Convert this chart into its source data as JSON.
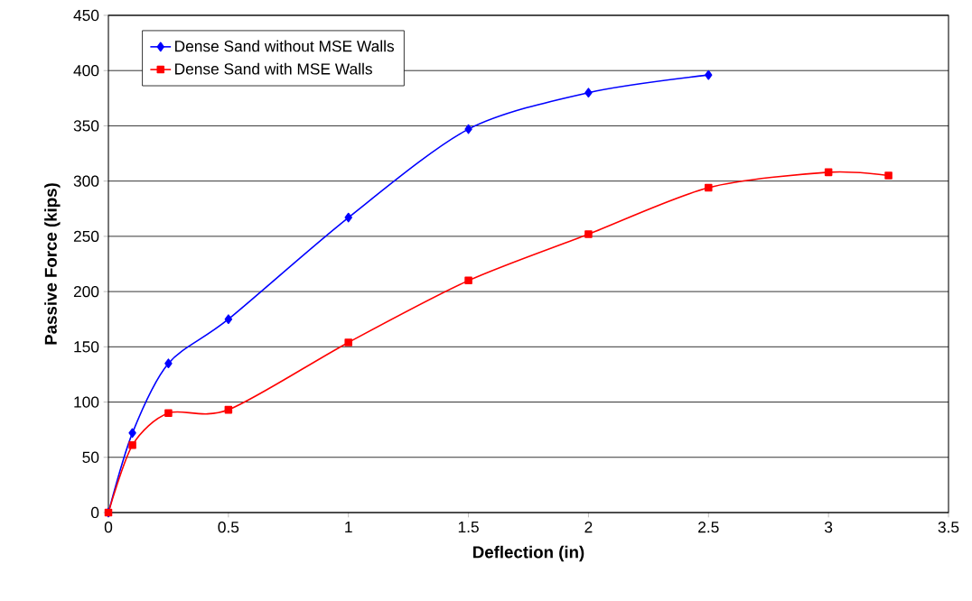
{
  "chart_data": {
    "type": "line",
    "xlabel": "Deflection (in)",
    "ylabel": "Passive Force (kips)",
    "xlim": [
      0,
      3.5
    ],
    "xticks": [
      0,
      0.5,
      1,
      1.5,
      2,
      2.5,
      3,
      3.5
    ],
    "ylim": [
      0,
      450
    ],
    "yticks": [
      0,
      50,
      100,
      150,
      200,
      250,
      300,
      350,
      400,
      450
    ],
    "grid": "y",
    "legend": "top left",
    "line_style": "solid",
    "series": [
      {
        "name": "Dense Sand without MSE Walls",
        "color": "#0000ff",
        "marker": "diamond",
        "x": [
          0,
          0.1,
          0.25,
          0.5,
          1,
          1.5,
          2,
          2.5
        ],
        "values": [
          0,
          72,
          135,
          175,
          267,
          347,
          380,
          396
        ]
      },
      {
        "name": "Dense Sand with MSE Walls",
        "color": "#ff0000",
        "marker": "square",
        "x": [
          0,
          0.1,
          0.25,
          0.5,
          1,
          1.5,
          2,
          2.5,
          3,
          3.25
        ],
        "values": [
          0,
          61,
          90,
          93,
          154,
          210,
          252,
          294,
          308,
          305
        ]
      }
    ]
  }
}
